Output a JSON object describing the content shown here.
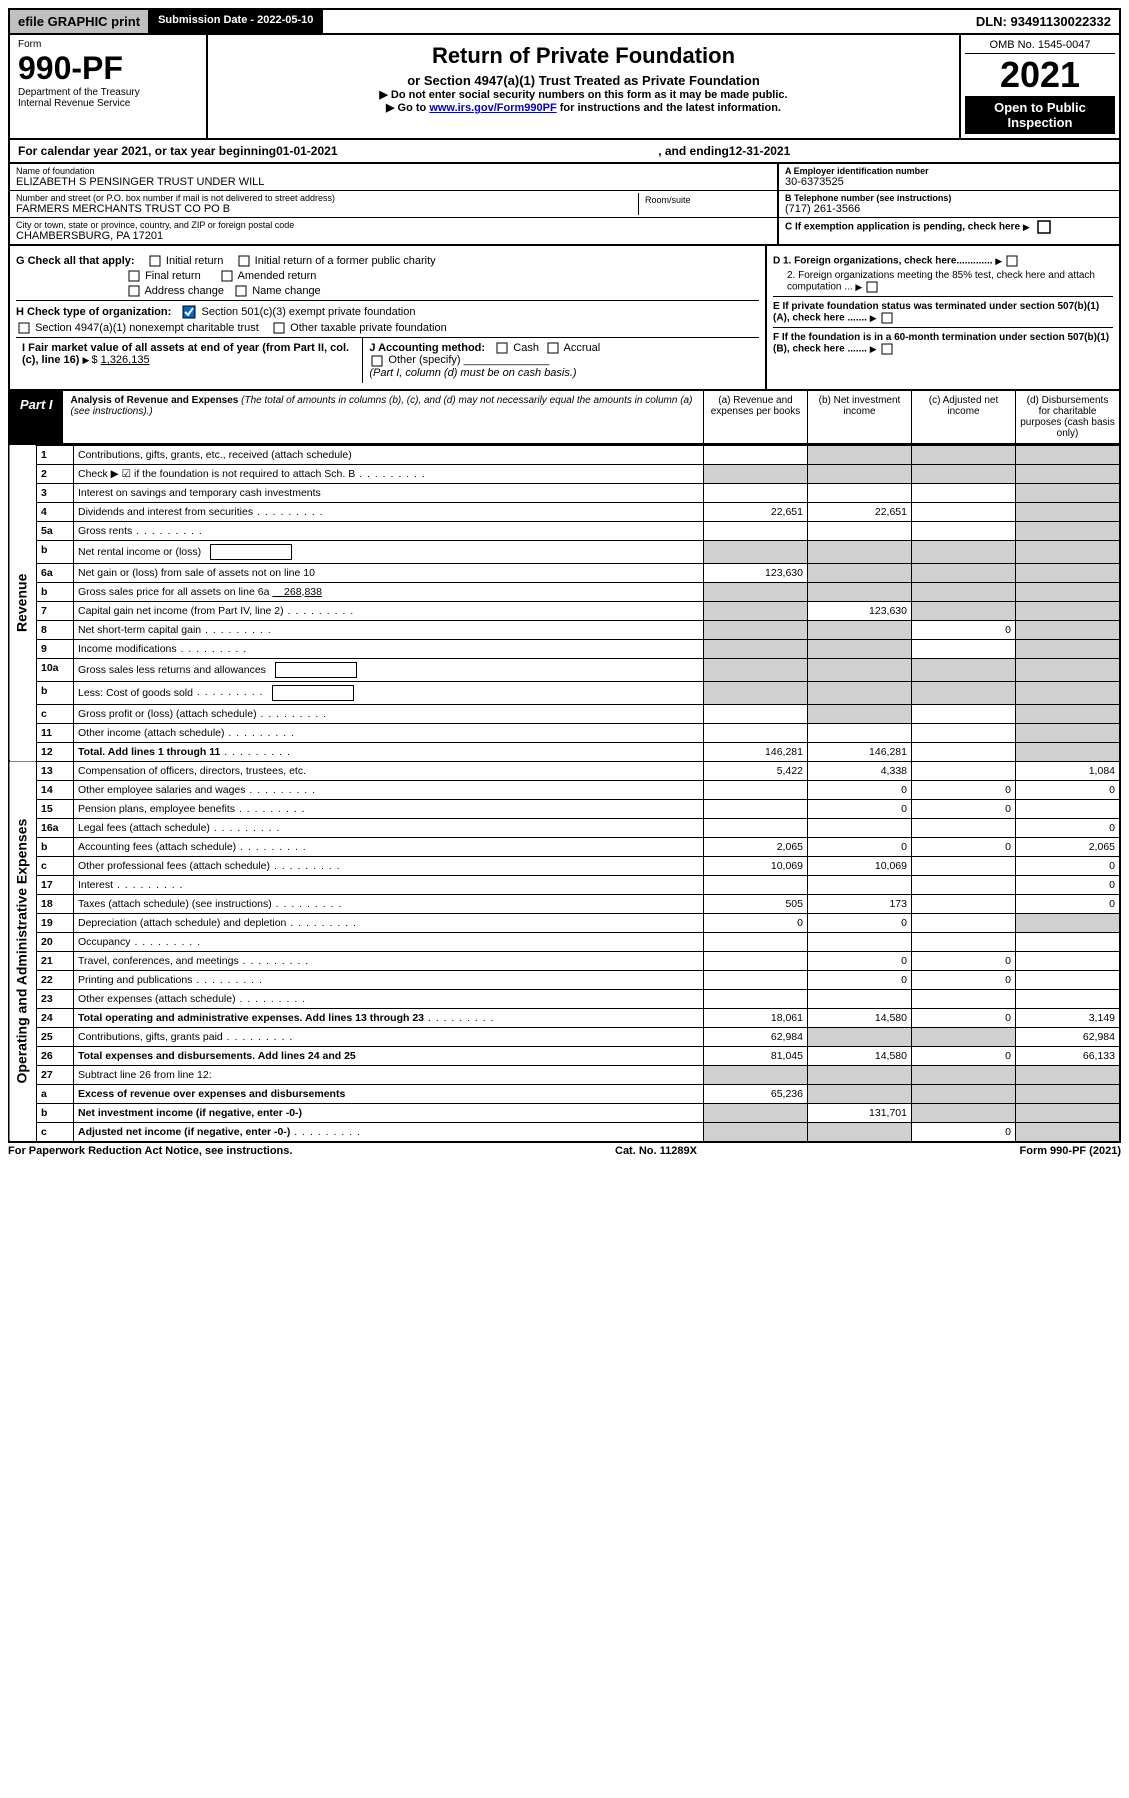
{
  "top": {
    "efile": "efile GRAPHIC print",
    "submission": "Submission Date - 2022-05-10",
    "dln": "DLN: 93491130022332"
  },
  "header": {
    "form_word": "Form",
    "form_num": "990-PF",
    "dept": "Department of the Treasury",
    "irs": "Internal Revenue Service",
    "title": "Return of Private Foundation",
    "subtitle": "or Section 4947(a)(1) Trust Treated as Private Foundation",
    "note1": "▶ Do not enter social security numbers on this form as it may be made public.",
    "note2_pre": "▶ Go to ",
    "note2_link": "www.irs.gov/Form990PF",
    "note2_post": " for instructions and the latest information.",
    "omb": "OMB No. 1545-0047",
    "year": "2021",
    "open": "Open to Public Inspection"
  },
  "calyear": {
    "pre": "For calendar year 2021, or tax year beginning ",
    "begin": "01-01-2021",
    "mid": ", and ending ",
    "end": "12-31-2021"
  },
  "entity": {
    "name_lbl": "Name of foundation",
    "name": "ELIZABETH S PENSINGER TRUST UNDER WILL",
    "addr_lbl": "Number and street (or P.O. box number if mail is not delivered to street address)",
    "addr": "FARMERS MERCHANTS TRUST CO PO B",
    "room_lbl": "Room/suite",
    "city_lbl": "City or town, state or province, country, and ZIP or foreign postal code",
    "city": "CHAMBERSBURG, PA  17201",
    "ein_lbl": "A Employer identification number",
    "ein": "30-6373525",
    "phone_lbl": "B Telephone number (see instructions)",
    "phone": "(717) 261-3566",
    "c_lbl": "C If exemption application is pending, check here",
    "d1": "D 1. Foreign organizations, check here.............",
    "d2": "2. Foreign organizations meeting the 85% test, check here and attach computation ...",
    "e": "E  If private foundation status was terminated under section 507(b)(1)(A), check here .......",
    "f": "F  If the foundation is in a 60-month termination under section 507(b)(1)(B), check here .......",
    "g_lbl": "G Check all that apply:",
    "g_opts": [
      "Initial return",
      "Initial return of a former public charity",
      "Final return",
      "Amended return",
      "Address change",
      "Name change"
    ],
    "h_lbl": "H Check type of organization:",
    "h_opt1": "Section 501(c)(3) exempt private foundation",
    "h_opt2": "Section 4947(a)(1) nonexempt charitable trust",
    "h_opt3": "Other taxable private foundation",
    "i_lbl": "I Fair market value of all assets at end of year (from Part II, col. (c), line 16)",
    "i_val": "1,326,135",
    "j_lbl": "J Accounting method:",
    "j_cash": "Cash",
    "j_accrual": "Accrual",
    "j_other": "Other (specify)",
    "j_note": "(Part I, column (d) must be on cash basis.)"
  },
  "part1": {
    "label": "Part I",
    "title": "Analysis of Revenue and Expenses",
    "title_note": " (The total of amounts in columns (b), (c), and (d) may not necessarily equal the amounts in column (a) (see instructions).)",
    "col_a": "(a)  Revenue and expenses per books",
    "col_b": "(b)  Net investment income",
    "col_c": "(c)  Adjusted net income",
    "col_d": "(d)  Disbursements for charitable purposes (cash basis only)"
  },
  "side_labels": {
    "revenue": "Revenue",
    "expenses": "Operating and Administrative Expenses"
  },
  "rows": [
    {
      "n": "1",
      "d": "Contributions, gifts, grants, etc., received (attach schedule)",
      "a": "",
      "b": "",
      "c": "",
      "dd": "",
      "sb": true,
      "sc": true,
      "sd": true
    },
    {
      "n": "2",
      "d": "Check ▶ ☑ if the foundation is not required to attach Sch. B",
      "dots": true,
      "a": "",
      "b": "",
      "c": "",
      "dd": "",
      "sa": true,
      "sb": true,
      "sc": true,
      "sd": true
    },
    {
      "n": "3",
      "d": "Interest on savings and temporary cash investments",
      "a": "",
      "b": "",
      "c": "",
      "dd": "",
      "sd": true
    },
    {
      "n": "4",
      "d": "Dividends and interest from securities",
      "dots": true,
      "a": "22,651",
      "b": "22,651",
      "c": "",
      "dd": "",
      "sd": true
    },
    {
      "n": "5a",
      "d": "Gross rents",
      "dots": true,
      "a": "",
      "b": "",
      "c": "",
      "dd": "",
      "sd": true
    },
    {
      "n": "b",
      "d": "Net rental income or (loss)",
      "box": true,
      "a": "",
      "b": "",
      "c": "",
      "dd": "",
      "sa": true,
      "sb": true,
      "sc": true,
      "sd": true
    },
    {
      "n": "6a",
      "d": "Net gain or (loss) from sale of assets not on line 10",
      "a": "123,630",
      "b": "",
      "c": "",
      "dd": "",
      "sb": true,
      "sc": true,
      "sd": true
    },
    {
      "n": "b",
      "d": "Gross sales price for all assets on line 6a",
      "inline": "268,838",
      "a": "",
      "b": "",
      "c": "",
      "dd": "",
      "sa": true,
      "sb": true,
      "sc": true,
      "sd": true
    },
    {
      "n": "7",
      "d": "Capital gain net income (from Part IV, line 2)",
      "dots": true,
      "a": "",
      "b": "123,630",
      "c": "",
      "dd": "",
      "sa": true,
      "sc": true,
      "sd": true
    },
    {
      "n": "8",
      "d": "Net short-term capital gain",
      "dots": true,
      "a": "",
      "b": "",
      "c": "0",
      "dd": "",
      "sa": true,
      "sb": true,
      "sd": true
    },
    {
      "n": "9",
      "d": "Income modifications",
      "dots": true,
      "a": "",
      "b": "",
      "c": "",
      "dd": "",
      "sa": true,
      "sb": true,
      "sd": true
    },
    {
      "n": "10a",
      "d": "Gross sales less returns and allowances",
      "box": true,
      "a": "",
      "b": "",
      "c": "",
      "dd": "",
      "sa": true,
      "sb": true,
      "sc": true,
      "sd": true
    },
    {
      "n": "b",
      "d": "Less: Cost of goods sold",
      "dots": true,
      "box": true,
      "a": "",
      "b": "",
      "c": "",
      "dd": "",
      "sa": true,
      "sb": true,
      "sc": true,
      "sd": true
    },
    {
      "n": "c",
      "d": "Gross profit or (loss) (attach schedule)",
      "dots": true,
      "a": "",
      "b": "",
      "c": "",
      "dd": "",
      "sb": true,
      "sd": true
    },
    {
      "n": "11",
      "d": "Other income (attach schedule)",
      "dots": true,
      "a": "",
      "b": "",
      "c": "",
      "dd": "",
      "sd": true
    },
    {
      "n": "12",
      "d": "Total. Add lines 1 through 11",
      "bold": true,
      "dots": true,
      "a": "146,281",
      "b": "146,281",
      "c": "",
      "dd": "",
      "sd": true
    }
  ],
  "exp_rows": [
    {
      "n": "13",
      "d": "Compensation of officers, directors, trustees, etc.",
      "a": "5,422",
      "b": "4,338",
      "c": "",
      "dd": "1,084"
    },
    {
      "n": "14",
      "d": "Other employee salaries and wages",
      "dots": true,
      "a": "",
      "b": "0",
      "c": "0",
      "dd": "0"
    },
    {
      "n": "15",
      "d": "Pension plans, employee benefits",
      "dots": true,
      "a": "",
      "b": "0",
      "c": "0",
      "dd": ""
    },
    {
      "n": "16a",
      "d": "Legal fees (attach schedule)",
      "dots": true,
      "a": "",
      "b": "",
      "c": "",
      "dd": "0"
    },
    {
      "n": "b",
      "d": "Accounting fees (attach schedule)",
      "dots": true,
      "a": "2,065",
      "b": "0",
      "c": "0",
      "dd": "2,065"
    },
    {
      "n": "c",
      "d": "Other professional fees (attach schedule)",
      "dots": true,
      "a": "10,069",
      "b": "10,069",
      "c": "",
      "dd": "0"
    },
    {
      "n": "17",
      "d": "Interest",
      "dots": true,
      "a": "",
      "b": "",
      "c": "",
      "dd": "0"
    },
    {
      "n": "18",
      "d": "Taxes (attach schedule) (see instructions)",
      "dots": true,
      "a": "505",
      "b": "173",
      "c": "",
      "dd": "0"
    },
    {
      "n": "19",
      "d": "Depreciation (attach schedule) and depletion",
      "dots": true,
      "a": "0",
      "b": "0",
      "c": "",
      "dd": "",
      "sd": true
    },
    {
      "n": "20",
      "d": "Occupancy",
      "dots": true,
      "a": "",
      "b": "",
      "c": "",
      "dd": ""
    },
    {
      "n": "21",
      "d": "Travel, conferences, and meetings",
      "dots": true,
      "a": "",
      "b": "0",
      "c": "0",
      "dd": ""
    },
    {
      "n": "22",
      "d": "Printing and publications",
      "dots": true,
      "a": "",
      "b": "0",
      "c": "0",
      "dd": ""
    },
    {
      "n": "23",
      "d": "Other expenses (attach schedule)",
      "dots": true,
      "a": "",
      "b": "",
      "c": "",
      "dd": ""
    },
    {
      "n": "24",
      "d": "Total operating and administrative expenses. Add lines 13 through 23",
      "bold": true,
      "dots": true,
      "a": "18,061",
      "b": "14,580",
      "c": "0",
      "dd": "3,149"
    },
    {
      "n": "25",
      "d": "Contributions, gifts, grants paid",
      "dots": true,
      "a": "62,984",
      "b": "",
      "c": "",
      "dd": "62,984",
      "sb": true,
      "sc": true
    },
    {
      "n": "26",
      "d": "Total expenses and disbursements. Add lines 24 and 25",
      "bold": true,
      "a": "81,045",
      "b": "14,580",
      "c": "0",
      "dd": "66,133"
    },
    {
      "n": "27",
      "d": "Subtract line 26 from line 12:",
      "a": "",
      "b": "",
      "c": "",
      "dd": "",
      "sa": true,
      "sb": true,
      "sc": true,
      "sd": true
    },
    {
      "n": "a",
      "d": "Excess of revenue over expenses and disbursements",
      "bold": true,
      "a": "65,236",
      "b": "",
      "c": "",
      "dd": "",
      "sb": true,
      "sc": true,
      "sd": true
    },
    {
      "n": "b",
      "d": "Net investment income (if negative, enter -0-)",
      "bold": true,
      "a": "",
      "b": "131,701",
      "c": "",
      "dd": "",
      "sa": true,
      "sc": true,
      "sd": true
    },
    {
      "n": "c",
      "d": "Adjusted net income (if negative, enter -0-)",
      "bold": true,
      "dots": true,
      "a": "",
      "b": "",
      "c": "0",
      "dd": "",
      "sa": true,
      "sb": true,
      "sd": true
    }
  ],
  "footer": {
    "paperwork": "For Paperwork Reduction Act Notice, see instructions.",
    "cat": "Cat. No. 11289X",
    "form": "Form 990-PF (2021)"
  }
}
